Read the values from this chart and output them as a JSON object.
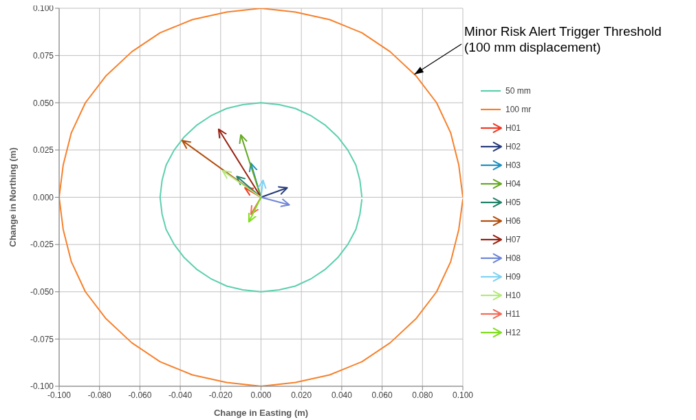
{
  "chart_data": {
    "type": "line",
    "xlabel": "Change in Easting (m)",
    "ylabel": "Change in Northing (m)",
    "xlim": [
      -0.1,
      0.1
    ],
    "ylim": [
      -0.1,
      0.1
    ],
    "xticks": [
      {
        "value": -0.1,
        "label": "-0.100"
      },
      {
        "value": -0.08,
        "label": "-0.080"
      },
      {
        "value": -0.06,
        "label": "-0.060"
      },
      {
        "value": -0.04,
        "label": "-0.040"
      },
      {
        "value": -0.02,
        "label": "-0.020"
      },
      {
        "value": 0,
        "label": "0.000"
      },
      {
        "value": 0.02,
        "label": "0.020"
      },
      {
        "value": 0.04,
        "label": "0.040"
      },
      {
        "value": 0.06,
        "label": "0.060"
      },
      {
        "value": 0.08,
        "label": "0.080"
      },
      {
        "value": 0.1,
        "label": "0.100"
      }
    ],
    "yticks": [
      {
        "value": -0.1,
        "label": "-0.100"
      },
      {
        "value": -0.075,
        "label": "-0.075"
      },
      {
        "value": -0.05,
        "label": "-0.050"
      },
      {
        "value": -0.025,
        "label": "-0.025"
      },
      {
        "value": 0,
        "label": "0.000"
      },
      {
        "value": 0.025,
        "label": "0.025"
      },
      {
        "value": 0.05,
        "label": "0.050"
      },
      {
        "value": 0.075,
        "label": "0.075"
      },
      {
        "value": 0.1,
        "label": "0.100"
      }
    ],
    "grid": true,
    "legend": "right",
    "marker": "none",
    "annotations": [
      {
        "text": "Minor Risk Alert Trigger Threshold\n(100 mm displacement)",
        "x": 0.076,
        "y": 0.065
      }
    ],
    "series": [
      {
        "name": "50 mm",
        "color": "#5bcfae",
        "x": [
          0.05,
          0.049,
          0.047,
          0.043,
          0.038,
          0.032,
          0.025,
          0.017,
          0.009,
          0,
          -0.009,
          -0.017,
          -0.025,
          -0.032,
          -0.038,
          -0.043,
          -0.047,
          -0.049,
          -0.05,
          -0.049,
          -0.047,
          -0.043,
          -0.038,
          -0.032,
          -0.025,
          -0.017,
          -0.009,
          0,
          0.009,
          0.017,
          0.025,
          0.032,
          0.038,
          0.043,
          0.047,
          0.049,
          0.05
        ],
        "values": [
          0,
          0.009,
          0.017,
          0.025,
          0.032,
          0.038,
          0.043,
          0.047,
          0.049,
          0.05,
          0.049,
          0.047,
          0.043,
          0.038,
          0.032,
          0.025,
          0.017,
          0.009,
          0,
          -0.009,
          -0.017,
          -0.025,
          -0.032,
          -0.038,
          -0.043,
          -0.047,
          -0.049,
          -0.05,
          -0.049,
          -0.047,
          -0.043,
          -0.038,
          -0.032,
          -0.025,
          -0.017,
          -0.009,
          -0.001
        ]
      },
      {
        "name": "100 mr",
        "color": "#f7802a",
        "x": [
          0.1,
          0.098,
          0.094,
          0.087,
          0.077,
          0.064,
          0.05,
          0.034,
          0.017,
          0,
          -0.017,
          -0.034,
          -0.05,
          -0.064,
          -0.077,
          -0.087,
          -0.094,
          -0.098,
          -0.1,
          -0.098,
          -0.094,
          -0.087,
          -0.077,
          -0.064,
          -0.05,
          -0.034,
          -0.017,
          0,
          0.017,
          0.034,
          0.05,
          0.064,
          0.077,
          0.087,
          0.094,
          0.098,
          0.1
        ],
        "values": [
          0,
          0.017,
          0.034,
          0.05,
          0.064,
          0.077,
          0.087,
          0.094,
          0.098,
          0.1,
          0.098,
          0.094,
          0.087,
          0.077,
          0.064,
          0.05,
          0.034,
          0.017,
          0,
          -0.017,
          -0.034,
          -0.05,
          -0.064,
          -0.077,
          -0.087,
          -0.094,
          -0.098,
          -0.1,
          -0.098,
          -0.094,
          -0.087,
          -0.077,
          -0.064,
          -0.05,
          -0.034,
          -0.017,
          -0.001
        ]
      },
      {
        "name": "H01",
        "color": "#ee3a24",
        "x": [
          0,
          -0.008
        ],
        "values": [
          0,
          0.005
        ]
      },
      {
        "name": "H02",
        "color": "#253a7a",
        "x": [
          0,
          0.013
        ],
        "values": [
          0,
          0.005
        ]
      },
      {
        "name": "H03",
        "color": "#1a8fc0",
        "x": [
          0,
          -0.005
        ],
        "values": [
          0,
          0.018
        ]
      },
      {
        "name": "H04",
        "color": "#63a820",
        "x": [
          0,
          -0.01
        ],
        "values": [
          0,
          0.033
        ]
      },
      {
        "name": "H05",
        "color": "#1e8065",
        "x": [
          0,
          -0.012
        ],
        "values": [
          0,
          0.011
        ]
      },
      {
        "name": "H06",
        "color": "#b24c0a",
        "x": [
          0,
          -0.039
        ],
        "values": [
          0,
          0.03
        ]
      },
      {
        "name": "H07",
        "color": "#99200f",
        "x": [
          0,
          -0.021
        ],
        "values": [
          0,
          0.036
        ]
      },
      {
        "name": "H08",
        "color": "#6e85d6",
        "x": [
          0,
          0.014
        ],
        "values": [
          0,
          -0.004
        ]
      },
      {
        "name": "H09",
        "color": "#7fd2f2",
        "x": [
          0,
          0.001
        ],
        "values": [
          0,
          0.009
        ]
      },
      {
        "name": "H10",
        "color": "#b2ea7a",
        "x": [
          0,
          -0.019
        ],
        "values": [
          0,
          0.014
        ]
      },
      {
        "name": "H11",
        "color": "#f26a55",
        "x": [
          0,
          -0.005
        ],
        "values": [
          0,
          -0.009
        ]
      },
      {
        "name": "H12",
        "color": "#7fdd1c",
        "x": [
          0,
          -0.006
        ],
        "values": [
          0,
          -0.013
        ]
      }
    ]
  }
}
